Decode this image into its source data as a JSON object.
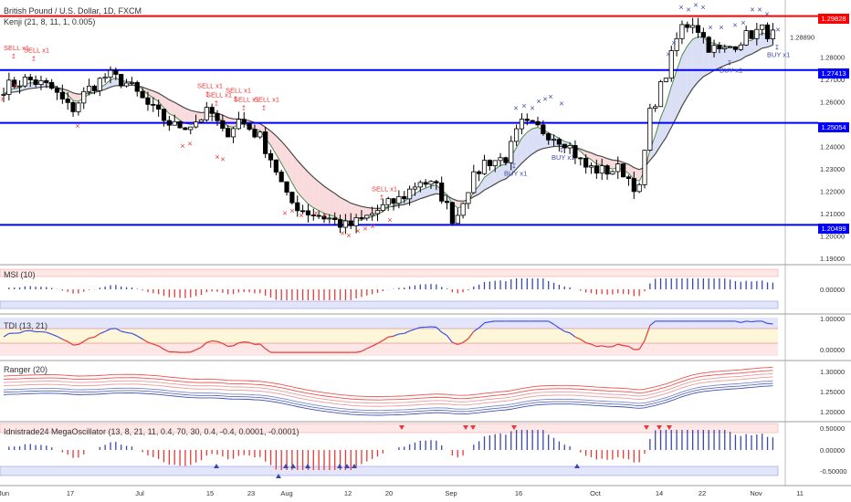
{
  "header": {
    "symbol_title": "British Pound / U.S. Dollar, 1D, FXCM",
    "kenji_label": "Kenji (21, 8, 11, 1, 0.005)"
  },
  "colors": {
    "red_level": "#ff0000",
    "blue_level": "#0000ff",
    "sell": "#e53935",
    "buy": "#3949ab",
    "cloud_pink": "#f8d7da",
    "cloud_blue": "#d6dcf5",
    "ma_dark": "#4a4a4a",
    "ma_green": "#4c8b4c"
  },
  "price_panel": {
    "levels": [
      {
        "price": 1.29828,
        "label": "1.29828",
        "color": "#ff0000"
      },
      {
        "price": 1.27413,
        "label": "1.27413",
        "color": "#0000ff"
      },
      {
        "price": 1.25054,
        "label": "1.25054",
        "color": "#0000ff"
      },
      {
        "price": 1.20499,
        "label": "1.20499",
        "color": "#0000ff"
      }
    ],
    "current_price": "1.28890",
    "axis_ticks": [
      "1.28000",
      "1.27000",
      "1.26000",
      "1.24000",
      "1.23000",
      "1.22000",
      "1.21000",
      "1.20000",
      "1.19000"
    ],
    "signal_labels": [
      {
        "text": "SELL x1",
        "kind": "sell"
      },
      {
        "text": "SELL x1",
        "kind": "sell"
      },
      {
        "text": "SELL x1",
        "kind": "sell"
      },
      {
        "text": "SELL x1",
        "kind": "sell"
      },
      {
        "text": "SELL x1",
        "kind": "sell"
      },
      {
        "text": "SELL x1",
        "kind": "sell"
      },
      {
        "text": "SELL x1",
        "kind": "sell"
      },
      {
        "text": "SELL x1",
        "kind": "sell"
      },
      {
        "text": "BUY x1",
        "kind": "buy"
      },
      {
        "text": "BUY x1",
        "kind": "buy"
      },
      {
        "text": "BUY x1",
        "kind": "buy"
      },
      {
        "text": "BUY x1",
        "kind": "buy"
      }
    ]
  },
  "msi_panel": {
    "title": "MSI (10)",
    "axis_ticks": [
      "0.00000"
    ]
  },
  "tdi_panel": {
    "title": "TDI (13, 21)",
    "axis_ticks": [
      "1.00000",
      "0.00000"
    ]
  },
  "ranger_panel": {
    "title": "Ranger (20)",
    "axis_ticks": [
      "1.30000",
      "1.25000",
      "1.20000"
    ]
  },
  "mega_panel": {
    "title": "Idnistrade24 MegaOscillator (13, 8, 21, 11, 0.4, 70, 30, 0.4, -0.4, 0.0001, -0.0001)",
    "axis_ticks": [
      "0.50000",
      "0.00000",
      "-0.50000"
    ]
  },
  "x_axis": {
    "labels": [
      "Jun",
      "17",
      "Jul",
      "15",
      "23",
      "Aug",
      "12",
      "20",
      "Sep",
      "16",
      "Oct",
      "14",
      "22",
      "Nov",
      "11"
    ]
  }
}
